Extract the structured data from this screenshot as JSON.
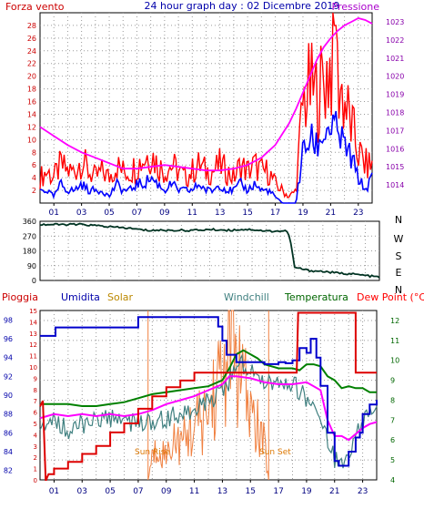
{
  "header": {
    "wind_label": "Forza vento",
    "title": "24 hour graph day : 02 Dicembre 2019",
    "pressure_label": "Pressione"
  },
  "colors": {
    "wind_gust": "#ff0000",
    "wind_avg": "#0000ff",
    "pressure": "#ff00ff",
    "direction": "#003322",
    "rain": "#dd0000",
    "humidity": "#0000cc",
    "solar": "#f08040",
    "windchill": "#408080",
    "temperature": "#008000",
    "dewpoint": "#ff00ff",
    "axis_left": "#cc0000",
    "axis_right": "#8800aa",
    "axis_hum": "#0000aa",
    "axis_temp": "#006600"
  },
  "bottom_labels": {
    "rain": "Pioggia",
    "humidity": "Umidita",
    "solar": "Solar",
    "windchill": "Windchill",
    "temperature": "Temperatura",
    "dewpoint": "Dew Point (°C)"
  },
  "annotations": {
    "sun_rise": "Sun Rise",
    "sun_set": "Sun Set"
  },
  "chart_data": [
    {
      "type": "line",
      "title": "24 hour graph day : 02 Dicembre 2019",
      "x_ticks": [
        "01",
        "03",
        "05",
        "07",
        "09",
        "11",
        "13",
        "15",
        "17",
        "19",
        "21",
        "23"
      ],
      "x_range_hours": [
        0,
        24
      ],
      "y_left": {
        "label": "Forza vento",
        "range": [
          0,
          30
        ],
        "ticks": [
          0,
          2,
          4,
          6,
          8,
          10,
          12,
          14,
          16,
          18,
          20,
          22,
          24,
          26,
          28,
          30
        ]
      },
      "y_right": {
        "label": "Pressione",
        "range": [
          1013,
          1023.5
        ],
        "ticks": [
          1014,
          1015,
          1016,
          1017,
          1018,
          1019,
          1020,
          1021,
          1022,
          1023
        ]
      },
      "series": [
        {
          "name": "Wind gust",
          "axis": "left",
          "x": [
            0,
            0.5,
            1,
            1.5,
            2,
            2.5,
            3,
            3.5,
            4,
            4.5,
            5,
            5.5,
            6,
            6.5,
            7,
            7.5,
            8,
            8.5,
            9,
            9.5,
            10,
            10.5,
            11,
            11.5,
            12,
            12.5,
            13,
            13.5,
            14,
            14.5,
            15,
            15.5,
            16,
            16.5,
            17,
            17.5,
            18,
            18.5,
            19,
            19.5,
            20,
            20.5,
            21,
            21.5,
            22,
            22.5,
            23,
            23.5,
            24
          ],
          "values": [
            4,
            5,
            4,
            6,
            5,
            5,
            7,
            5,
            4,
            5,
            4,
            6,
            5,
            5,
            6,
            7,
            8,
            6,
            5,
            6,
            5,
            4,
            5,
            6,
            5,
            5,
            6,
            5,
            4,
            6,
            5,
            6,
            5,
            5,
            3,
            2,
            1,
            2,
            16,
            18,
            17,
            19,
            22,
            20,
            16,
            12,
            8,
            6,
            6
          ]
        },
        {
          "name": "Wind average",
          "axis": "left",
          "x": [
            0,
            0.5,
            1,
            1.5,
            2,
            2.5,
            3,
            3.5,
            4,
            4.5,
            5,
            5.5,
            6,
            6.5,
            7,
            7.5,
            8,
            8.5,
            9,
            9.5,
            10,
            10.5,
            11,
            11.5,
            12,
            12.5,
            13,
            13.5,
            14,
            14.5,
            15,
            15.5,
            16,
            16.5,
            17,
            17.5,
            18,
            18.5,
            19,
            19.5,
            20,
            20.5,
            21,
            21.5,
            22,
            22.5,
            23,
            23.5,
            24
          ],
          "values": [
            2,
            2,
            1,
            3,
            2,
            2,
            3,
            2,
            2,
            2,
            1,
            3,
            2,
            2,
            3,
            3,
            4,
            3,
            2,
            3,
            2,
            2,
            2,
            3,
            2,
            2,
            3,
            2,
            2,
            3,
            2,
            3,
            2,
            2,
            1,
            0,
            0,
            0,
            8,
            10,
            9,
            11,
            12,
            11,
            9,
            7,
            4,
            2,
            4
          ]
        },
        {
          "name": "Pressione",
          "axis": "right",
          "x": [
            0,
            1,
            2,
            3,
            4,
            5,
            6,
            7,
            8,
            9,
            10,
            11,
            12,
            13,
            14,
            15,
            16,
            17,
            17.5,
            18,
            18.5,
            19,
            19.5,
            20,
            20.5,
            21,
            21.5,
            22,
            22.5,
            23,
            23.5,
            24
          ],
          "values": [
            1017.2,
            1016.7,
            1016.2,
            1015.8,
            1015.5,
            1015.2,
            1014.9,
            1014.9,
            1015.0,
            1015.1,
            1015.0,
            1014.9,
            1014.8,
            1014.8,
            1014.9,
            1015.1,
            1015.5,
            1016.2,
            1016.8,
            1017.4,
            1018.2,
            1019.1,
            1020.0,
            1020.9,
            1021.6,
            1022.1,
            1022.5,
            1022.8,
            1023.0,
            1023.2,
            1023.1,
            1022.9
          ]
        }
      ]
    },
    {
      "type": "line",
      "title": "",
      "y_labels": [
        "N",
        "W",
        "S",
        "E",
        "N"
      ],
      "y_range": [
        0,
        360
      ],
      "y_ticks": [
        0,
        90,
        180,
        270,
        360
      ],
      "y_tick_labels": [
        "0",
        "90",
        "180",
        "270",
        "360"
      ],
      "series": [
        {
          "name": "Wind direction",
          "x": [
            0,
            3,
            4.5,
            5,
            6,
            7,
            7.5,
            9,
            11,
            12,
            13.5,
            14,
            15,
            16,
            17.5,
            17.7,
            18,
            19,
            20,
            21,
            22,
            23,
            24
          ],
          "values": [
            340,
            340,
            330,
            325,
            320,
            310,
            305,
            305,
            305,
            310,
            305,
            310,
            310,
            300,
            300,
            245,
            80,
            60,
            55,
            45,
            40,
            30,
            20
          ]
        }
      ]
    },
    {
      "type": "line",
      "title": "",
      "axes": {
        "rain": {
          "label": "Pioggia",
          "range": [
            0,
            15
          ],
          "ticks": [
            0,
            1,
            2,
            3,
            4,
            5,
            6,
            7,
            8,
            9,
            10,
            11,
            12,
            13,
            14,
            15
          ]
        },
        "humidity": {
          "label": "Umidita",
          "range": [
            81,
            99
          ],
          "ticks": [
            82,
            84,
            86,
            88,
            90,
            92,
            94,
            96,
            98
          ]
        },
        "temperature": {
          "label": "Dew Point (°C)",
          "range": [
            4,
            12.5
          ],
          "ticks": [
            4,
            5,
            6,
            7,
            8,
            9,
            10,
            11,
            12
          ]
        }
      },
      "series": [
        {
          "name": "Pioggia",
          "axis": "rain",
          "x": [
            0,
            0.2,
            0.4,
            0.45,
            0.5,
            0.6,
            1,
            2,
            3,
            4,
            5,
            6,
            7,
            8,
            9,
            10,
            11,
            12,
            13,
            14,
            15,
            16,
            17,
            18,
            18.3,
            18.4,
            20,
            21,
            22,
            22.5,
            23,
            24
          ],
          "values": [
            6.5,
            7.0,
            0,
            0,
            0.2,
            0.5,
            1.0,
            1.6,
            2.3,
            3.0,
            4.2,
            5.0,
            6.3,
            7.4,
            8.2,
            8.8,
            9.5,
            9.5,
            9.5,
            9.5,
            9.5,
            9.5,
            9.5,
            9.5,
            9.5,
            14.8,
            14.8,
            14.8,
            14.8,
            9.5,
            9.5,
            9.5
          ]
        },
        {
          "name": "Umidita",
          "axis": "humidity",
          "x": [
            0,
            1,
            1.1,
            5,
            6.5,
            7,
            11,
            12,
            12.7,
            13,
            13.3,
            14,
            15,
            16,
            17,
            17.5,
            18,
            18.5,
            19,
            19.3,
            19.7,
            20,
            20.5,
            21,
            21.3,
            22,
            22.5,
            22.8,
            23,
            23.5,
            24
          ],
          "values": [
            96.3,
            96.3,
            97.2,
            97.2,
            97.2,
            98.3,
            98.3,
            98.3,
            97.3,
            95.8,
            94.3,
            93.5,
            93.5,
            93.3,
            93.5,
            93.4,
            93.7,
            95.0,
            94.5,
            96.0,
            94.0,
            91.0,
            86.0,
            83.0,
            82.5,
            84.0,
            85.5,
            86.0,
            88.0,
            89.0,
            89.5
          ]
        },
        {
          "name": "Solar",
          "axis": "rain",
          "x": [
            7.7,
            8,
            8.5,
            9,
            9.5,
            10,
            10.5,
            11,
            11.5,
            12,
            12.5,
            13,
            13.3,
            13.6,
            14,
            14.5,
            15,
            15.3,
            15.7,
            16,
            16.3
          ],
          "values": [
            0,
            2,
            3,
            2,
            4,
            3,
            4,
            5,
            5,
            6,
            8,
            9,
            11,
            14.5,
            10,
            8,
            6,
            5,
            4,
            3,
            0
          ]
        },
        {
          "name": "Windchill",
          "axis": "temperature",
          "x": [
            0,
            1,
            2,
            3,
            4,
            5,
            6,
            7,
            8,
            9,
            10,
            11,
            12,
            13,
            13.5,
            14,
            14.5,
            15,
            15.5,
            16,
            17,
            18,
            18.5,
            19,
            19.5,
            20,
            20.5,
            21,
            21.5,
            22,
            22.5,
            23,
            23.5,
            24
          ],
          "values": [
            7.0,
            7.5,
            7.0,
            7.3,
            7.5,
            7.6,
            7.4,
            7.3,
            7.5,
            7.6,
            7.8,
            8.0,
            8.4,
            9.0,
            9.5,
            10.5,
            10.2,
            10.0,
            9.8,
            9.5,
            9.4,
            9.3,
            9.0,
            8.5,
            8.2,
            7.5,
            6.5,
            5.5,
            5.2,
            5.8,
            6.5,
            7.5,
            8.0,
            8.2
          ]
        },
        {
          "name": "Temperatura",
          "axis": "temperature",
          "x": [
            0,
            1,
            2,
            3,
            4,
            5,
            6,
            7,
            8,
            9,
            10,
            11,
            12,
            13,
            13.5,
            14,
            14.5,
            15,
            15.5,
            16,
            17,
            18,
            18.5,
            19,
            19.5,
            20,
            20.5,
            21,
            21.5,
            22,
            22.5,
            23,
            23.5,
            24
          ],
          "values": [
            7.8,
            7.8,
            7.8,
            7.7,
            7.7,
            7.8,
            7.9,
            8.1,
            8.3,
            8.4,
            8.5,
            8.6,
            8.7,
            9.0,
            9.6,
            10.3,
            10.5,
            10.3,
            10.1,
            9.8,
            9.6,
            9.6,
            9.5,
            9.8,
            9.8,
            9.7,
            9.2,
            9.0,
            8.6,
            8.7,
            8.6,
            8.6,
            8.4,
            8.4
          ]
        },
        {
          "name": "Dew Point",
          "axis": "temperature",
          "x": [
            0,
            0.5,
            1,
            2,
            3,
            4,
            5,
            6,
            7,
            8,
            9,
            10,
            11,
            12,
            13,
            13.5,
            14,
            15,
            16,
            17,
            18,
            19,
            20,
            20.5,
            21,
            21.5,
            22,
            22.5,
            23,
            23.5,
            24
          ],
          "values": [
            7.1,
            7.2,
            7.3,
            7.2,
            7.3,
            7.2,
            7.3,
            7.2,
            7.3,
            7.5,
            7.8,
            8.0,
            8.2,
            8.5,
            8.8,
            9.2,
            9.2,
            9.1,
            8.9,
            8.8,
            8.8,
            8.9,
            8.5,
            7.0,
            6.2,
            6.2,
            6.0,
            6.3,
            6.6,
            6.8,
            6.9
          ]
        }
      ]
    }
  ]
}
